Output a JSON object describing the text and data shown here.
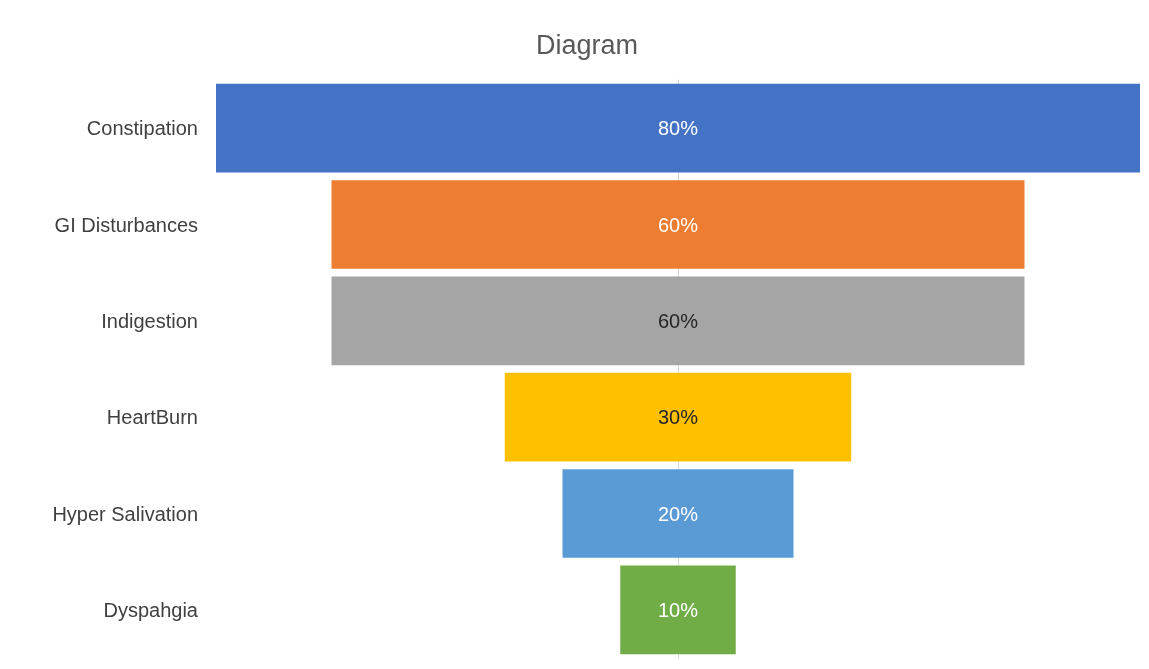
{
  "chart_data": {
    "type": "other",
    "title": "Diagram",
    "categories": [
      "Constipation",
      "GI Disturbances",
      "Indigestion",
      "HeartBurn",
      "Hyper Salivation",
      "Dyspahgia"
    ],
    "values": [
      80,
      60,
      60,
      30,
      20,
      10
    ],
    "value_labels": [
      "80%",
      "60%",
      "60%",
      "30%",
      "20%",
      "10%"
    ],
    "colors": [
      "#4472c4",
      "#ed7d31",
      "#a5a5a5",
      "#ffc000",
      "#5b9bd5",
      "#70ad47"
    ]
  }
}
